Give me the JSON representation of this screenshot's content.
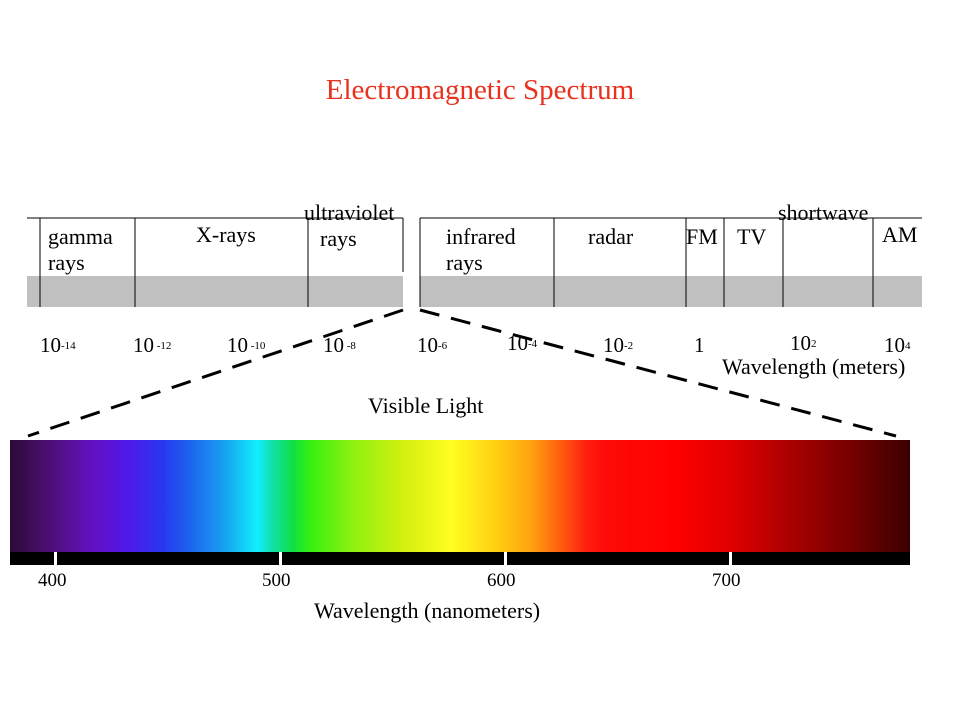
{
  "title": "Electromagnetic Spectrum",
  "bands": [
    {
      "line1": "gamma",
      "line2": "rays"
    },
    {
      "line1": "X-rays",
      "line2": ""
    },
    {
      "line1": "ultraviolet",
      "line2": "rays"
    },
    {
      "line1": "infrared",
      "line2": "rays"
    },
    {
      "line1": "radar",
      "line2": ""
    },
    {
      "line1": "FM",
      "line2": ""
    },
    {
      "line1": "TV",
      "line2": ""
    },
    {
      "line1": "shortwave",
      "line2": ""
    },
    {
      "line1": "AM",
      "line2": ""
    }
  ],
  "wavelength_ticks": [
    {
      "base": "10",
      "exp": "-14"
    },
    {
      "base": "10",
      "exp": " -12"
    },
    {
      "base": "10",
      "exp": " -10"
    },
    {
      "base": "10",
      "exp": " -8"
    },
    {
      "base": "10",
      "exp": "-6"
    },
    {
      "base": "10",
      "exp": "-4"
    },
    {
      "base": "10",
      "exp": "-2"
    },
    {
      "base": "1",
      "exp": ""
    },
    {
      "base": "10",
      "exp": "2"
    },
    {
      "base": "10",
      "exp": "4"
    }
  ],
  "wavelength_axis_label": "Wavelength (meters)",
  "visible_light_label": "Visible Light",
  "nm_ticks": [
    "400",
    "500",
    "600",
    "700"
  ],
  "nm_axis_label": "Wavelength (nanometers)"
}
